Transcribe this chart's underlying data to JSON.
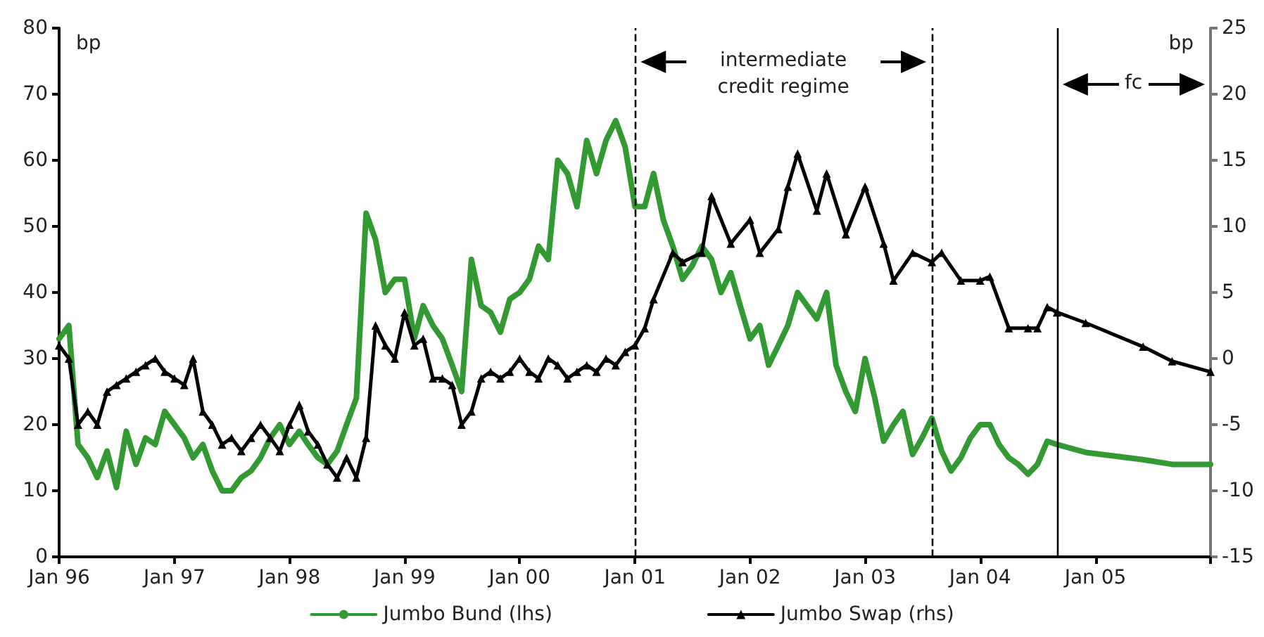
{
  "chart_data": {
    "type": "line",
    "ylabel": "bp",
    "y2label": "bp",
    "xlim": [
      "1996-01",
      "2006-01"
    ],
    "xticks": [
      {
        "value": "1996-01",
        "label": "Jan 96"
      },
      {
        "value": "1997-01",
        "label": "Jan 97"
      },
      {
        "value": "1998-01",
        "label": "Jan 98"
      },
      {
        "value": "1999-01",
        "label": "Jan 99"
      },
      {
        "value": "2000-01",
        "label": "Jan 00"
      },
      {
        "value": "2001-01",
        "label": "Jan 01"
      },
      {
        "value": "2002-01",
        "label": "Jan 02"
      },
      {
        "value": "2003-01",
        "label": "Jan 03"
      },
      {
        "value": "2004-01",
        "label": "Jan 04"
      },
      {
        "value": "2005-01",
        "label": "Jan 05"
      },
      {
        "value": "2006-01",
        "label": null
      }
    ],
    "ylim": [
      0,
      80
    ],
    "yticks": [
      0,
      10,
      20,
      30,
      40,
      50,
      60,
      70,
      80
    ],
    "y2lim": [
      -15,
      25
    ],
    "y2ticks": [
      -15,
      -10,
      -5,
      0,
      5,
      10,
      15,
      20,
      25
    ],
    "grid": false,
    "legend": "bottom",
    "series": [
      {
        "name": "Jumbo Bund (lhs)",
        "color": "#339933",
        "marker": "none",
        "x": [
          "1996-01",
          "1996-02",
          "1996-03",
          "1996-04",
          "1996-05",
          "1996-06",
          "1996-07",
          "1996-08",
          "1996-09",
          "1996-10",
          "1996-11",
          "1996-12",
          "1997-01",
          "1997-02",
          "1997-03",
          "1997-04",
          "1997-05",
          "1997-06",
          "1997-07",
          "1997-08",
          "1997-09",
          "1997-10",
          "1997-11",
          "1997-12",
          "1998-01",
          "1998-02",
          "1998-03",
          "1998-04",
          "1998-05",
          "1998-06",
          "1998-07",
          "1998-08",
          "1998-09",
          "1998-10",
          "1998-11",
          "1998-12",
          "1999-01",
          "1999-02",
          "1999-03",
          "1999-04",
          "1999-05",
          "1999-06",
          "1999-07",
          "1999-08",
          "1999-09",
          "1999-10",
          "1999-11",
          "1999-12",
          "2000-01",
          "2000-02",
          "2000-03",
          "2000-04",
          "2000-05",
          "2000-06",
          "2000-07",
          "2000-08",
          "2000-09",
          "2000-10",
          "2000-11",
          "2000-12",
          "2001-01",
          "2001-02",
          "2001-03",
          "2001-04",
          "2001-05",
          "2001-06",
          "2001-07",
          "2001-08",
          "2001-09",
          "2001-10",
          "2001-11",
          "2001-12",
          "2002-01",
          "2002-02",
          "2002-03",
          "2002-04",
          "2002-05",
          "2002-06",
          "2002-07",
          "2002-08",
          "2002-09",
          "2002-10",
          "2002-11",
          "2002-12",
          "2003-01",
          "2003-02",
          "2003-03",
          "2003-04",
          "2003-05",
          "2003-06",
          "2003-07",
          "2003-08",
          "2003-09",
          "2003-10",
          "2003-11",
          "2003-12",
          "2004-01",
          "2004-02",
          "2004-03",
          "2004-04",
          "2004-05",
          "2004-06",
          "2004-07",
          "2004-08",
          "2004-09",
          "2004-12",
          "2005-06",
          "2005-09",
          "2006-01"
        ],
        "values": [
          33,
          35,
          17,
          15,
          12,
          16,
          10.5,
          19,
          14,
          18,
          17,
          22,
          20,
          18,
          15,
          17,
          13,
          10,
          10,
          12,
          13,
          15,
          18,
          20,
          17,
          19,
          17,
          15,
          14,
          16,
          20,
          24,
          52,
          48,
          40,
          42,
          42,
          33,
          38,
          35,
          33,
          29,
          25,
          45,
          38,
          37,
          34,
          39,
          40,
          42,
          47,
          45,
          60,
          58,
          53,
          63,
          58,
          63,
          66,
          62,
          53,
          53,
          58,
          51,
          47,
          42,
          44,
          47,
          45,
          40,
          43,
          38,
          33,
          35,
          29,
          32,
          35,
          40,
          38,
          36,
          40,
          29,
          25,
          22,
          30,
          24,
          17.5,
          20,
          22,
          15.5,
          18,
          21,
          16,
          13,
          15,
          18,
          20,
          20,
          17,
          15,
          14,
          12.5,
          14,
          17.5,
          17,
          15.8,
          14.7,
          14,
          14
        ]
      },
      {
        "name": "Jumbo Swap (rhs)",
        "color": "#000000",
        "marker": "triangle",
        "axis": "y2",
        "x": [
          "1996-01",
          "1996-02",
          "1996-03",
          "1996-04",
          "1996-05",
          "1996-06",
          "1996-07",
          "1996-08",
          "1996-09",
          "1996-10",
          "1996-11",
          "1996-12",
          "1997-01",
          "1997-02",
          "1997-03",
          "1997-04",
          "1997-05",
          "1997-06",
          "1997-07",
          "1997-08",
          "1997-09",
          "1997-10",
          "1997-11",
          "1997-12",
          "1998-01",
          "1998-02",
          "1998-03",
          "1998-04",
          "1998-05",
          "1998-06",
          "1998-07",
          "1998-08",
          "1998-09",
          "1998-10",
          "1998-11",
          "1998-12",
          "1999-01",
          "1999-02",
          "1999-03",
          "1999-04",
          "1999-05",
          "1999-06",
          "1999-07",
          "1999-08",
          "1999-09",
          "1999-10",
          "1999-11",
          "1999-12",
          "2000-01",
          "2000-02",
          "2000-03",
          "2000-04",
          "2000-05",
          "2000-06",
          "2000-07",
          "2000-08",
          "2000-09",
          "2000-10",
          "2000-11",
          "2000-12",
          "2001-01",
          "2001-02",
          "2001-03",
          "2001-05",
          "2001-06",
          "2001-08",
          "2001-09",
          "2001-11",
          "2002-01",
          "2002-02",
          "2002-04",
          "2002-05",
          "2002-06",
          "2002-08",
          "2002-09",
          "2002-11",
          "2003-01",
          "2003-03",
          "2003-04",
          "2003-06",
          "2003-08",
          "2003-09",
          "2003-11",
          "2004-01",
          "2004-02",
          "2004-04",
          "2004-06",
          "2004-07",
          "2004-08",
          "2004-09",
          "2004-12",
          "2005-06",
          "2005-09",
          "2006-01"
        ],
        "values": [
          1,
          0,
          -5,
          -4,
          -5,
          -2.5,
          -2,
          -1.5,
          -1,
          -0.5,
          0,
          -1,
          -1.5,
          -2,
          0,
          -4,
          -5,
          -6.5,
          -6,
          -7,
          -6,
          -5,
          -6,
          -7,
          -5,
          -3.5,
          -5.5,
          -6.5,
          -8,
          -9,
          -7.5,
          -9,
          -6,
          2.5,
          1,
          0,
          3.5,
          1,
          1.5,
          -1.5,
          -1.5,
          -2,
          -5,
          -4,
          -1.5,
          -1,
          -1.5,
          -1,
          0,
          -1,
          -1.5,
          0,
          -0.5,
          -1.5,
          -1,
          -0.5,
          -1,
          0,
          -0.5,
          0.5,
          1,
          2.3,
          4.5,
          8,
          7.3,
          8,
          12.3,
          8.7,
          10.5,
          8,
          9.8,
          13,
          15.5,
          11.2,
          14,
          9.4,
          13,
          8.7,
          5.9,
          8,
          7.3,
          8,
          5.9,
          5.9,
          6.2,
          2.3,
          2.3,
          2.3,
          3.9,
          3.5,
          2.7,
          0.9,
          -0.2,
          -1
        ]
      }
    ],
    "ref_lines": [
      {
        "axis": "x",
        "value": "2001-01",
        "line_style": "dashed",
        "color": "#000000"
      },
      {
        "axis": "x",
        "value": "2003-08",
        "line_style": "dashed",
        "color": "#000000"
      },
      {
        "axis": "x",
        "value": "2004-09",
        "line_style": "solid",
        "color": "#000000"
      }
    ],
    "annotations": [
      "intermediate credit regime",
      "fc"
    ]
  }
}
